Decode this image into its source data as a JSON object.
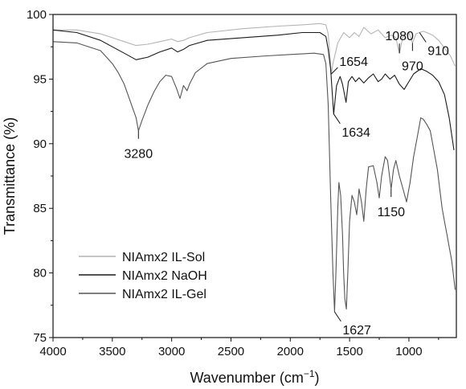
{
  "chart_data": {
    "type": "line",
    "title": "",
    "xlabel": "Wavenumber (cm",
    "xlabel_superscript": "−1",
    "xlabel_close": ")",
    "ylabel": "Transmittance (%)",
    "xlim": [
      4000,
      600
    ],
    "x_reversed": true,
    "ylim": [
      75,
      100
    ],
    "grid": false,
    "legend_position": "bottom-left",
    "x_ticks": [
      4000,
      3500,
      3000,
      2500,
      2000,
      1500,
      1000
    ],
    "y_ticks": [
      75,
      80,
      85,
      90,
      95,
      100
    ],
    "series": [
      {
        "name": "NIAmx2 IL-Sol",
        "color": "#b4b4b4",
        "points": [
          [
            4000,
            98.8
          ],
          [
            3800,
            98.8
          ],
          [
            3600,
            98.5
          ],
          [
            3500,
            98.2
          ],
          [
            3400,
            97.9
          ],
          [
            3300,
            97.6
          ],
          [
            3200,
            97.7
          ],
          [
            3100,
            97.9
          ],
          [
            3000,
            98.1
          ],
          [
            2950,
            97.9
          ],
          [
            2900,
            98.0
          ],
          [
            2850,
            98.2
          ],
          [
            2700,
            98.6
          ],
          [
            2400,
            98.9
          ],
          [
            2100,
            99.1
          ],
          [
            1900,
            99.2
          ],
          [
            1750,
            99.3
          ],
          [
            1700,
            99.2
          ],
          [
            1680,
            98.5
          ],
          [
            1654,
            95.4
          ],
          [
            1640,
            96.2
          ],
          [
            1620,
            97.0
          ],
          [
            1600,
            97.8
          ],
          [
            1550,
            98.6
          ],
          [
            1500,
            98.2
          ],
          [
            1460,
            98.6
          ],
          [
            1420,
            98.3
          ],
          [
            1380,
            99.0
          ],
          [
            1320,
            98.5
          ],
          [
            1260,
            98.8
          ],
          [
            1200,
            98.2
          ],
          [
            1150,
            98.4
          ],
          [
            1110,
            98.2
          ],
          [
            1080,
            97.0
          ],
          [
            1050,
            98.3
          ],
          [
            1000,
            98.6
          ],
          [
            970,
            97.8
          ],
          [
            940,
            98.5
          ],
          [
            910,
            98.6
          ],
          [
            880,
            98.7
          ],
          [
            850,
            98.6
          ],
          [
            800,
            98.4
          ],
          [
            750,
            98.0
          ],
          [
            700,
            97.4
          ],
          [
            650,
            96.8
          ],
          [
            610,
            96.0
          ]
        ]
      },
      {
        "name": "NIAmx2 NaOH",
        "color": "#1a1a1a",
        "points": [
          [
            4000,
            98.8
          ],
          [
            3800,
            98.6
          ],
          [
            3600,
            98.0
          ],
          [
            3500,
            97.5
          ],
          [
            3400,
            97.0
          ],
          [
            3300,
            96.5
          ],
          [
            3200,
            96.7
          ],
          [
            3100,
            97.1
          ],
          [
            3000,
            97.4
          ],
          [
            2950,
            97.1
          ],
          [
            2900,
            97.3
          ],
          [
            2850,
            97.6
          ],
          [
            2700,
            98.0
          ],
          [
            2400,
            98.2
          ],
          [
            2100,
            98.4
          ],
          [
            1900,
            98.6
          ],
          [
            1750,
            98.6
          ],
          [
            1700,
            98.3
          ],
          [
            1680,
            97.3
          ],
          [
            1660,
            95.8
          ],
          [
            1634,
            92.3
          ],
          [
            1610,
            94.5
          ],
          [
            1580,
            95.2
          ],
          [
            1560,
            94.6
          ],
          [
            1530,
            93.2
          ],
          [
            1510,
            94.8
          ],
          [
            1480,
            95.2
          ],
          [
            1450,
            94.8
          ],
          [
            1420,
            95.1
          ],
          [
            1380,
            94.7
          ],
          [
            1340,
            95.1
          ],
          [
            1300,
            95.4
          ],
          [
            1260,
            94.8
          ],
          [
            1230,
            95.0
          ],
          [
            1200,
            95.4
          ],
          [
            1160,
            95.0
          ],
          [
            1120,
            95.3
          ],
          [
            1080,
            94.6
          ],
          [
            1040,
            94.2
          ],
          [
            1000,
            94.8
          ],
          [
            960,
            95.4
          ],
          [
            900,
            95.8
          ],
          [
            850,
            95.6
          ],
          [
            800,
            95.3
          ],
          [
            750,
            94.8
          ],
          [
            700,
            93.8
          ],
          [
            660,
            92.0
          ],
          [
            620,
            89.5
          ]
        ]
      },
      {
        "name": "NIAmx2 IL-Gel",
        "color": "#555555",
        "points": [
          [
            4000,
            97.9
          ],
          [
            3800,
            97.8
          ],
          [
            3600,
            97.2
          ],
          [
            3500,
            96.2
          ],
          [
            3450,
            95.5
          ],
          [
            3400,
            94.6
          ],
          [
            3350,
            93.3
          ],
          [
            3300,
            92.0
          ],
          [
            3280,
            91.0
          ],
          [
            3250,
            91.8
          ],
          [
            3200,
            93.0
          ],
          [
            3150,
            94.0
          ],
          [
            3100,
            94.8
          ],
          [
            3050,
            95.3
          ],
          [
            3000,
            95.2
          ],
          [
            2960,
            94.3
          ],
          [
            2930,
            93.5
          ],
          [
            2900,
            94.5
          ],
          [
            2870,
            94.1
          ],
          [
            2850,
            94.6
          ],
          [
            2800,
            95.5
          ],
          [
            2700,
            96.2
          ],
          [
            2500,
            96.6
          ],
          [
            2200,
            96.8
          ],
          [
            2000,
            96.9
          ],
          [
            1800,
            97.0
          ],
          [
            1720,
            96.9
          ],
          [
            1700,
            96.2
          ],
          [
            1680,
            93.0
          ],
          [
            1660,
            86.0
          ],
          [
            1640,
            80.0
          ],
          [
            1627,
            77.0
          ],
          [
            1615,
            80.0
          ],
          [
            1600,
            85.0
          ],
          [
            1590,
            87.0
          ],
          [
            1575,
            86.0
          ],
          [
            1560,
            83.0
          ],
          [
            1550,
            80.0
          ],
          [
            1540,
            78.0
          ],
          [
            1527,
            77.2
          ],
          [
            1515,
            80.0
          ],
          [
            1500,
            84.0
          ],
          [
            1480,
            86.0
          ],
          [
            1460,
            85.5
          ],
          [
            1440,
            84.5
          ],
          [
            1420,
            86.5
          ],
          [
            1400,
            85.5
          ],
          [
            1380,
            84.0
          ],
          [
            1360,
            86.5
          ],
          [
            1340,
            88.2
          ],
          [
            1300,
            88.3
          ],
          [
            1270,
            87.0
          ],
          [
            1250,
            85.8
          ],
          [
            1230,
            87.5
          ],
          [
            1200,
            89.0
          ],
          [
            1180,
            88.7
          ],
          [
            1150,
            86.5
          ],
          [
            1130,
            88.0
          ],
          [
            1110,
            88.7
          ],
          [
            1080,
            87.5
          ],
          [
            1050,
            86.5
          ],
          [
            1020,
            85.5
          ],
          [
            990,
            87.0
          ],
          [
            960,
            89.0
          ],
          [
            930,
            90.5
          ],
          [
            900,
            92.0
          ],
          [
            880,
            91.9
          ],
          [
            850,
            91.5
          ],
          [
            820,
            91.0
          ],
          [
            800,
            90.0
          ],
          [
            780,
            89.0
          ],
          [
            760,
            88.0
          ],
          [
            740,
            86.5
          ],
          [
            720,
            85.0
          ],
          [
            700,
            84.0
          ],
          [
            680,
            83.0
          ],
          [
            660,
            82.0
          ],
          [
            640,
            81.0
          ],
          [
            620,
            79.5
          ],
          [
            610,
            78.7
          ]
        ]
      }
    ],
    "annotations": [
      {
        "text": "3280",
        "x": 3280,
        "y": 91.0,
        "placement": "below"
      },
      {
        "text": "1654",
        "x": 1654,
        "y": 95.4,
        "placement": "above-right"
      },
      {
        "text": "1634",
        "x": 1634,
        "y": 92.3,
        "placement": "below-right"
      },
      {
        "text": "1627",
        "x": 1627,
        "y": 77.0,
        "placement": "below-right"
      },
      {
        "text": "1150",
        "x": 1150,
        "y": 86.5,
        "placement": "below"
      },
      {
        "text": "1080",
        "x": 1080,
        "y": 97.0,
        "placement": "above"
      },
      {
        "text": "970",
        "x": 970,
        "y": 97.8,
        "placement": "below"
      },
      {
        "text": "910",
        "x": 910,
        "y": 98.6,
        "placement": "below-right"
      }
    ]
  }
}
